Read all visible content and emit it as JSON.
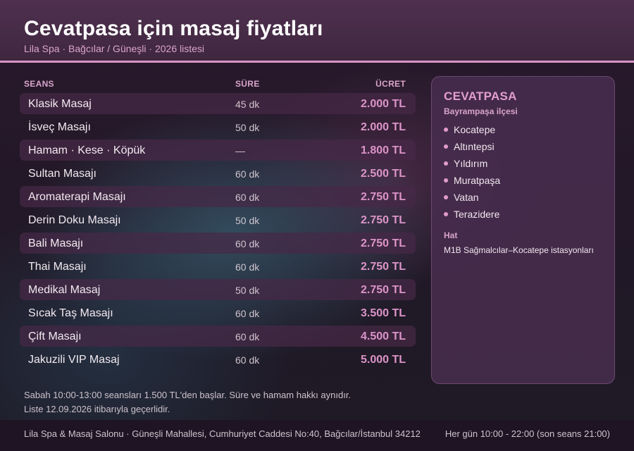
{
  "header": {
    "title": "Cevatpasa için masaj fiyatları",
    "subtitle": "Lila Spa · Bağcılar / Güneşli · 2026 listesi"
  },
  "table": {
    "columns": {
      "session": "SEANS",
      "duration": "SÜRE",
      "price": "ÜCRET"
    },
    "rows": [
      {
        "name": "Klasik Masaj",
        "duration": "45 dk",
        "price": "2.000 TL"
      },
      {
        "name": "İsveç Masajı",
        "duration": "50 dk",
        "price": "2.000 TL"
      },
      {
        "name": "Hamam · Kese · Köpük",
        "duration": "—",
        "price": "1.800 TL"
      },
      {
        "name": "Sultan Masajı",
        "duration": "60 dk",
        "price": "2.500 TL"
      },
      {
        "name": "Aromaterapi Masajı",
        "duration": "60 dk",
        "price": "2.750 TL"
      },
      {
        "name": "Derin Doku Masajı",
        "duration": "50 dk",
        "price": "2.750 TL"
      },
      {
        "name": "Bali Masajı",
        "duration": "60 dk",
        "price": "2.750 TL"
      },
      {
        "name": "Thai Masajı",
        "duration": "60 dk",
        "price": "2.750 TL"
      },
      {
        "name": "Medikal Masaj",
        "duration": "50 dk",
        "price": "2.750 TL"
      },
      {
        "name": "Sıcak Taş Masajı",
        "duration": "60 dk",
        "price": "3.500 TL"
      },
      {
        "name": "Çift Masajı",
        "duration": "60 dk",
        "price": "4.500 TL"
      },
      {
        "name": "Jakuzili VIP Masaj",
        "duration": "60 dk",
        "price": "5.000 TL"
      }
    ]
  },
  "notes": {
    "line1": "Sabah 10:00-13:00 seansları 1.500 TL'den başlar. Süre ve hamam hakkı aynıdır.",
    "line2": "Liste 12.09.2026 itibarıyla geçerlidir."
  },
  "panel": {
    "title": "CEVATPASA",
    "subtitle": "Bayrampaşa ilçesi",
    "neighborhoods": [
      "Kocatepe",
      "Altıntepsi",
      "Yıldırım",
      "Muratpaşa",
      "Vatan",
      "Terazidere"
    ],
    "line_label": "Hat",
    "line_value": "M1B Sağmalcılar–Kocatepe istasyonları"
  },
  "footer": {
    "address": "Lila Spa & Masaj Salonu · Güneşli Mahallesi, Cumhuriyet Caddesi No:40, Bağcılar/İstanbul 34212",
    "hours": "Her gün 10:00 - 22:00 (son seans 21:00)"
  },
  "colors": {
    "accent": "#dc94c8",
    "header_bg": "#4f304e",
    "panel_bg": "#482c4e"
  }
}
